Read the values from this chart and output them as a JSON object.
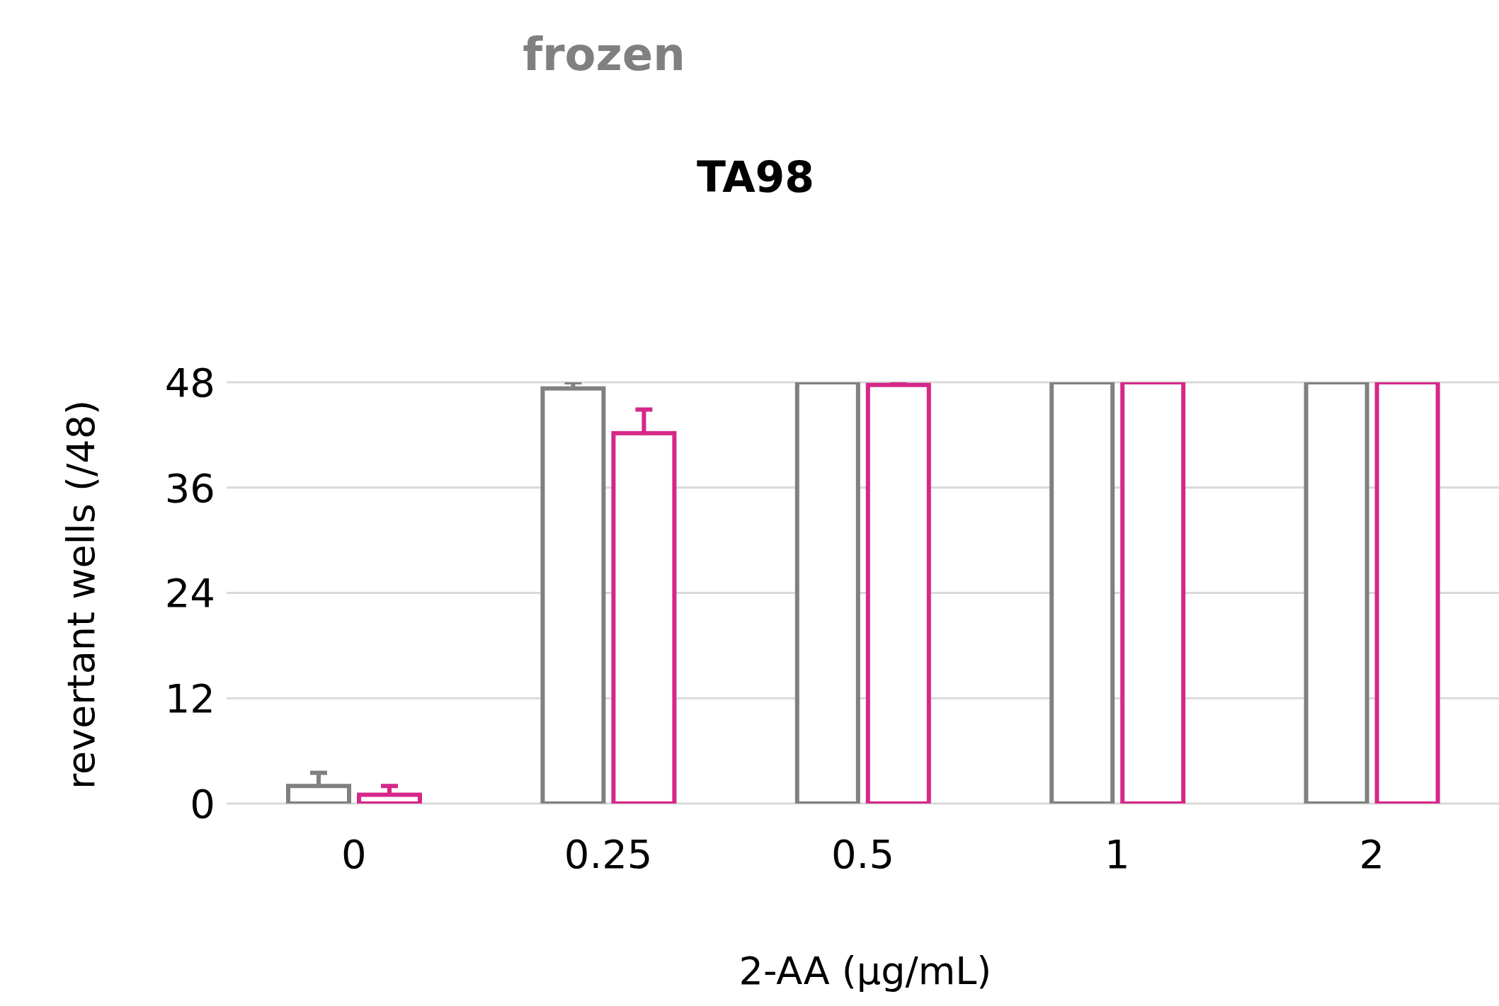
{
  "chart_data": {
    "type": "bar",
    "title": "frozen",
    "subtitle": "TA98",
    "xlabel": "2-AA (µg/mL)",
    "ylabel": "revertant wells (/48)",
    "categories": [
      "0",
      "0.25",
      "0.5",
      "1",
      "2"
    ],
    "series": [
      {
        "color": "#808080",
        "values": [
          2,
          47.3,
          48,
          48,
          48
        ],
        "errors": [
          [
            2,
            3.5
          ],
          [
            47.3,
            48
          ],
          null,
          null,
          null
        ]
      },
      {
        "color": "#d6278a",
        "values": [
          1,
          42.2,
          47.7,
          48,
          48
        ],
        "errors": [
          [
            1,
            2
          ],
          [
            42.2,
            44.9
          ],
          [
            47.7,
            48
          ],
          null,
          null
        ]
      }
    ],
    "ylim": [
      0,
      48
    ],
    "yticks": [
      0,
      12,
      24,
      36,
      48
    ],
    "grid": "y",
    "legend": false
  }
}
